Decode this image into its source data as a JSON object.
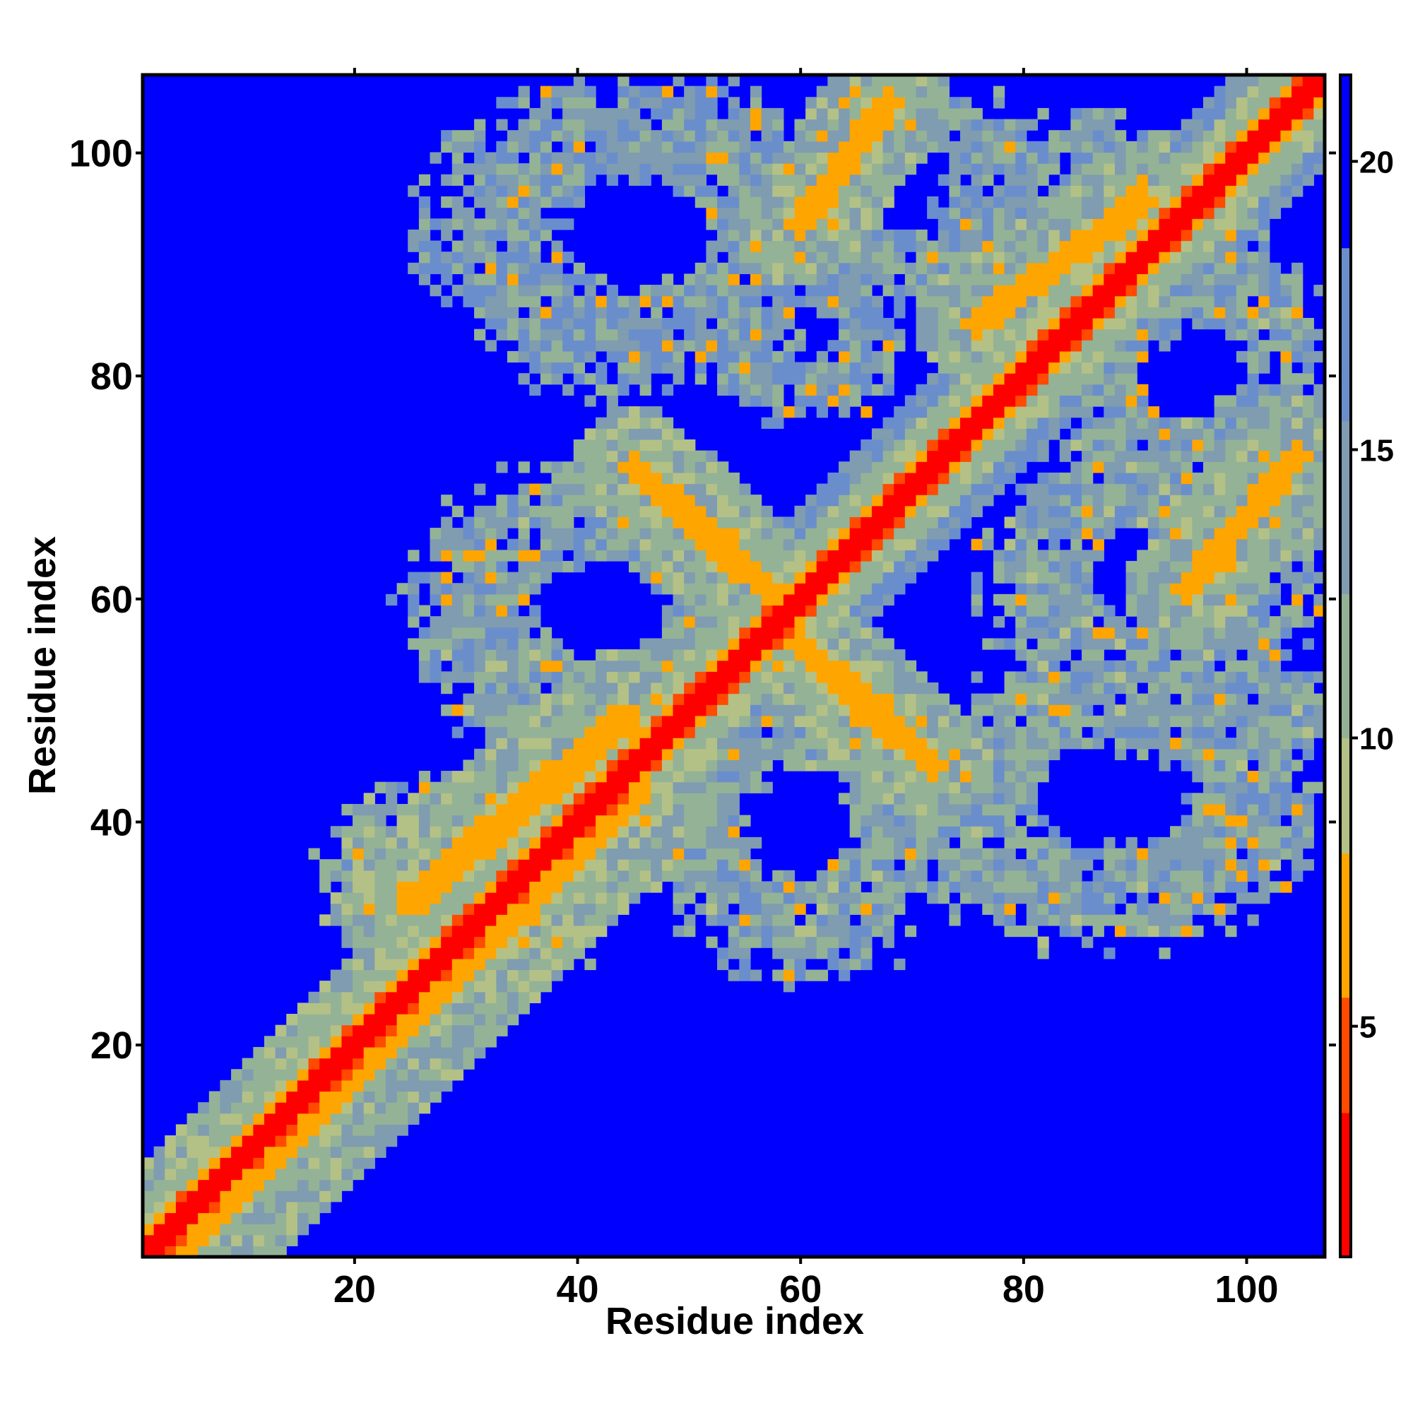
{
  "chart_data": {
    "type": "heatmap",
    "title": "",
    "xlabel": "Residue index",
    "ylabel": "Residue index",
    "n_residues": 107,
    "xlim": [
      1,
      107
    ],
    "ylim": [
      1,
      107
    ],
    "x_ticks": [
      {
        "value": 20,
        "label": "20"
      },
      {
        "value": 40,
        "label": "40"
      },
      {
        "value": 60,
        "label": "60"
      },
      {
        "value": 80,
        "label": "80"
      },
      {
        "value": 100,
        "label": "100"
      }
    ],
    "y_ticks": [
      {
        "value": 20,
        "label": "20"
      },
      {
        "value": 40,
        "label": "40"
      },
      {
        "value": 60,
        "label": "60"
      },
      {
        "value": 80,
        "label": "80"
      },
      {
        "value": 100,
        "label": "100"
      }
    ],
    "colorbar": {
      "range": [
        1,
        21.5
      ],
      "ticks": [
        {
          "value": 5,
          "label": "5"
        },
        {
          "value": 10,
          "label": "10"
        },
        {
          "value": 15,
          "label": "15"
        },
        {
          "value": 20,
          "label": "20"
        }
      ],
      "bins": [
        {
          "max": 3.5,
          "color": "#ff0000"
        },
        {
          "max": 5.5,
          "color": "#ff4a00"
        },
        {
          "max": 8.0,
          "color": "#ffa500"
        },
        {
          "max": 10.0,
          "color": "#b4c186"
        },
        {
          "max": 12.5,
          "color": "#94b296"
        },
        {
          "max": 15.5,
          "color": "#7f9cb0"
        },
        {
          "max": 18.5,
          "color": "#6a8ecb"
        },
        {
          "max": 21.5,
          "color": "#0000ff"
        }
      ]
    },
    "background_color": "#0000ff",
    "diagonal_band": {
      "width": 2.0,
      "value": 1.0
    },
    "contact_bands": [
      {
        "i0": 3,
        "j0": 1,
        "i1": 45,
        "j1": 43,
        "width": 3.5,
        "value": 7.0
      },
      {
        "i0": 25,
        "j0": 33,
        "i1": 44,
        "j1": 49,
        "width": 3.0,
        "value": 7.0
      },
      {
        "i0": 45,
        "j0": 72,
        "i1": 58,
        "j1": 60,
        "width": 2.5,
        "value": 7.0
      },
      {
        "i0": 60,
        "j0": 56,
        "i1": 72,
        "j1": 45,
        "width": 2.5,
        "value": 7.0
      },
      {
        "i0": 76,
        "j0": 85,
        "i1": 91,
        "j1": 96,
        "width": 2.5,
        "value": 7.0
      },
      {
        "i0": 60,
        "j0": 94,
        "i1": 68,
        "j1": 105,
        "width": 2.5,
        "value": 7.0
      },
      {
        "i0": 95,
        "j0": 61,
        "i1": 105,
        "j1": 73,
        "width": 2.5,
        "value": 7.0
      }
    ],
    "contact_regions": [
      {
        "cx": 45,
        "cy": 93,
        "rx": 19,
        "ry": 14,
        "value": 14.0
      },
      {
        "cx": 70,
        "cy": 97,
        "rx": 13,
        "ry": 10,
        "value": 14.0
      },
      {
        "cx": 87,
        "cy": 93,
        "rx": 14,
        "ry": 11,
        "value": 14.0
      },
      {
        "cx": 95,
        "cy": 81,
        "rx": 13,
        "ry": 13,
        "value": 13.0
      },
      {
        "cx": 42,
        "cy": 59,
        "rx": 17,
        "ry": 13,
        "value": 13.0
      },
      {
        "cx": 60,
        "cy": 40,
        "rx": 14,
        "ry": 14,
        "value": 13.0
      },
      {
        "cx": 88,
        "cy": 42,
        "rx": 20,
        "ry": 13,
        "value": 13.0
      },
      {
        "cx": 92,
        "cy": 62,
        "rx": 15,
        "ry": 13,
        "value": 13.0
      },
      {
        "cx": 30,
        "cy": 34,
        "rx": 13,
        "ry": 10,
        "value": 12.0
      },
      {
        "cx": 60,
        "cy": 84,
        "rx": 9,
        "ry": 8,
        "value": 14.0
      },
      {
        "cx": 100,
        "cy": 50,
        "rx": 8,
        "ry": 5,
        "value": 13.0
      }
    ]
  }
}
